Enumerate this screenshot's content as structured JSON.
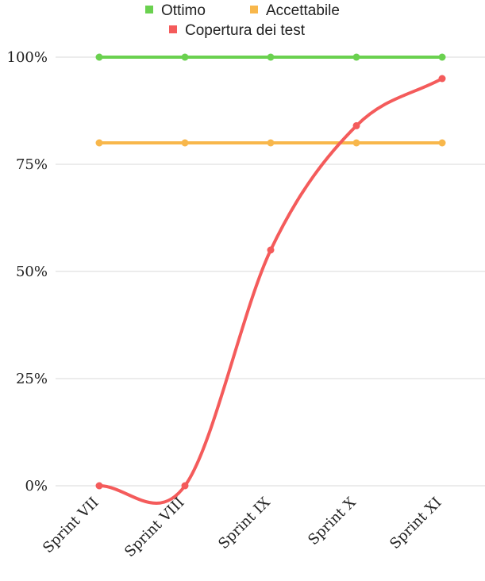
{
  "chart_data": {
    "type": "line",
    "categories": [
      "Sprint VII",
      "Sprint VIII",
      "Sprint IX",
      "Sprint X",
      "Sprint XI"
    ],
    "series": [
      {
        "name": "Ottimo",
        "values": [
          100,
          100,
          100,
          100,
          100
        ],
        "color": "#6ad14f",
        "smooth": false
      },
      {
        "name": "Accettabile",
        "values": [
          80,
          80,
          80,
          80,
          80
        ],
        "color": "#f8b74b",
        "smooth": false
      },
      {
        "name": "Copertura dei test",
        "values": [
          0,
          0,
          55,
          84,
          95
        ],
        "color": "#f45b5b",
        "smooth": true
      }
    ],
    "y_ticks": [
      {
        "value": 0,
        "label": "0%"
      },
      {
        "value": 25,
        "label": "25%"
      },
      {
        "value": 50,
        "label": "50%"
      },
      {
        "value": 75,
        "label": "75%"
      },
      {
        "value": 100,
        "label": "100%"
      }
    ],
    "ylim": [
      0,
      100
    ],
    "grid": true,
    "legend_position": "top-center",
    "title": "",
    "xlabel": "",
    "ylabel": ""
  }
}
